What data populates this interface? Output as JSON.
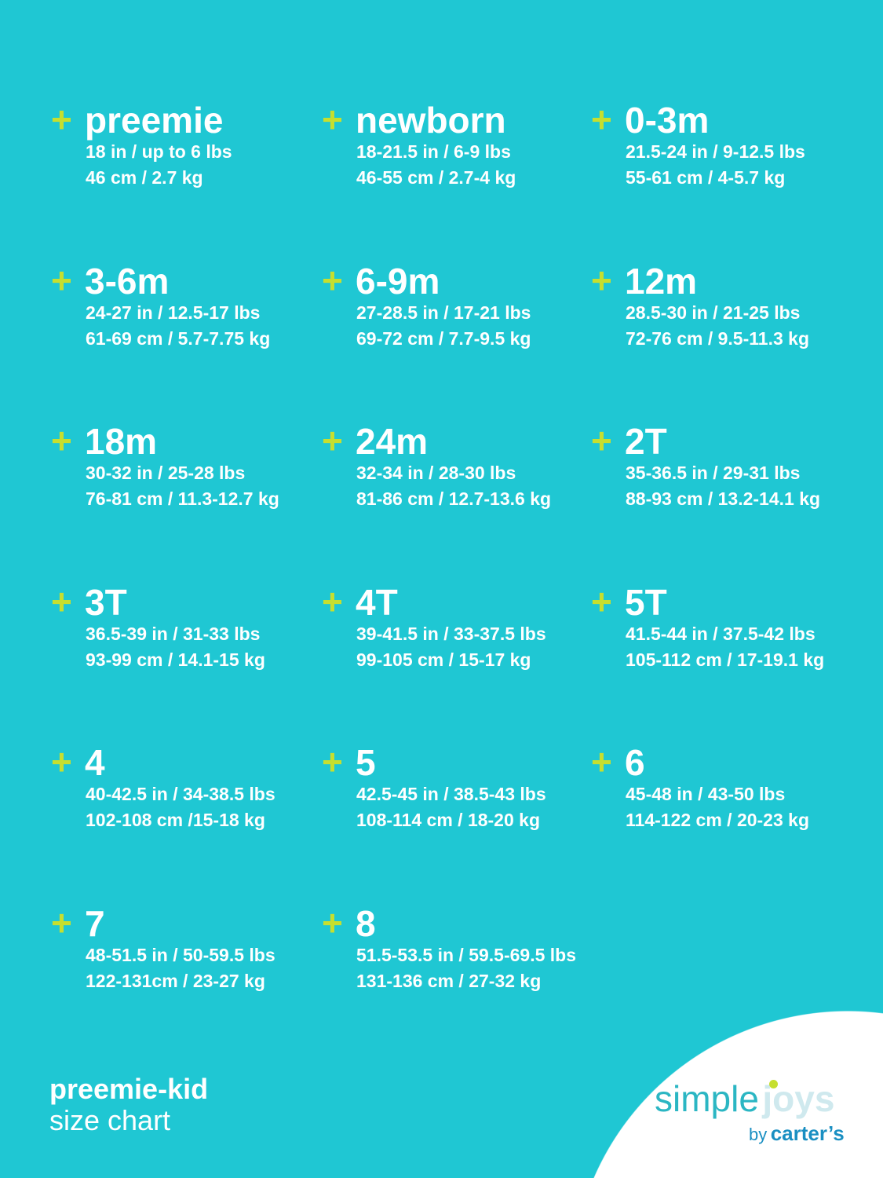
{
  "colors": {
    "background": "#1fc7d3",
    "plus": "#c6df2f",
    "text": "#ffffff"
  },
  "sizes": [
    {
      "name": "preemie",
      "imperial": "18 in / up to 6 lbs",
      "metric": "46 cm / 2.7 kg"
    },
    {
      "name": "newborn",
      "imperial": "18-21.5 in / 6-9 lbs",
      "metric": "46-55 cm / 2.7-4 kg"
    },
    {
      "name": "0-3m",
      "imperial": "21.5-24 in / 9-12.5 lbs",
      "metric": "55-61 cm / 4-5.7  kg"
    },
    {
      "name": "3-6m",
      "imperial": "24-27 in / 12.5-17 lbs",
      "metric": "61-69 cm / 5.7-7.75 kg"
    },
    {
      "name": "6-9m",
      "imperial": "27-28.5 in / 17-21 lbs",
      "metric": "69-72 cm / 7.7-9.5 kg"
    },
    {
      "name": "12m",
      "imperial": "28.5-30 in / 21-25 lbs",
      "metric": "72-76 cm / 9.5-11.3 kg"
    },
    {
      "name": "18m",
      "imperial": "30-32 in / 25-28 lbs",
      "metric": "76-81 cm / 11.3-12.7 kg"
    },
    {
      "name": "24m",
      "imperial": "32-34 in / 28-30 lbs",
      "metric": "81-86 cm / 12.7-13.6 kg"
    },
    {
      "name": "2T",
      "imperial": "35-36.5 in / 29-31 lbs",
      "metric": "88-93 cm / 13.2-14.1 kg"
    },
    {
      "name": "3T",
      "imperial": "36.5-39 in / 31-33 lbs",
      "metric": "93-99 cm / 14.1-15 kg"
    },
    {
      "name": "4T",
      "imperial": "39-41.5 in / 33-37.5 lbs",
      "metric": "99-105 cm / 15-17 kg"
    },
    {
      "name": "5T",
      "imperial": "41.5-44 in / 37.5-42 lbs",
      "metric": "105-112 cm / 17-19.1 kg"
    },
    {
      "name": "4",
      "imperial": "40-42.5 in / 34-38.5 lbs",
      "metric": "102-108 cm /15-18 kg"
    },
    {
      "name": "5",
      "imperial": "42.5-45 in / 38.5-43 lbs",
      "metric": "108-114 cm / 18-20 kg"
    },
    {
      "name": "6",
      "imperial": "45-48 in / 43-50 lbs",
      "metric": "114-122 cm / 20-23 kg"
    },
    {
      "name": "7",
      "imperial": "48-51.5 in / 50-59.5 lbs",
      "metric": "122-131cm / 23-27 kg"
    },
    {
      "name": "8",
      "imperial": "51.5-53.5 in / 59.5-69.5 lbs",
      "metric": "131-136 cm / 27-32 kg"
    }
  ],
  "plus_symbol": "+",
  "footer": {
    "line1": "preemie-kid",
    "line2": "size chart"
  },
  "logo": {
    "simple": "simple",
    "joys": "joys",
    "by": "by",
    "carters": "carter’s"
  }
}
